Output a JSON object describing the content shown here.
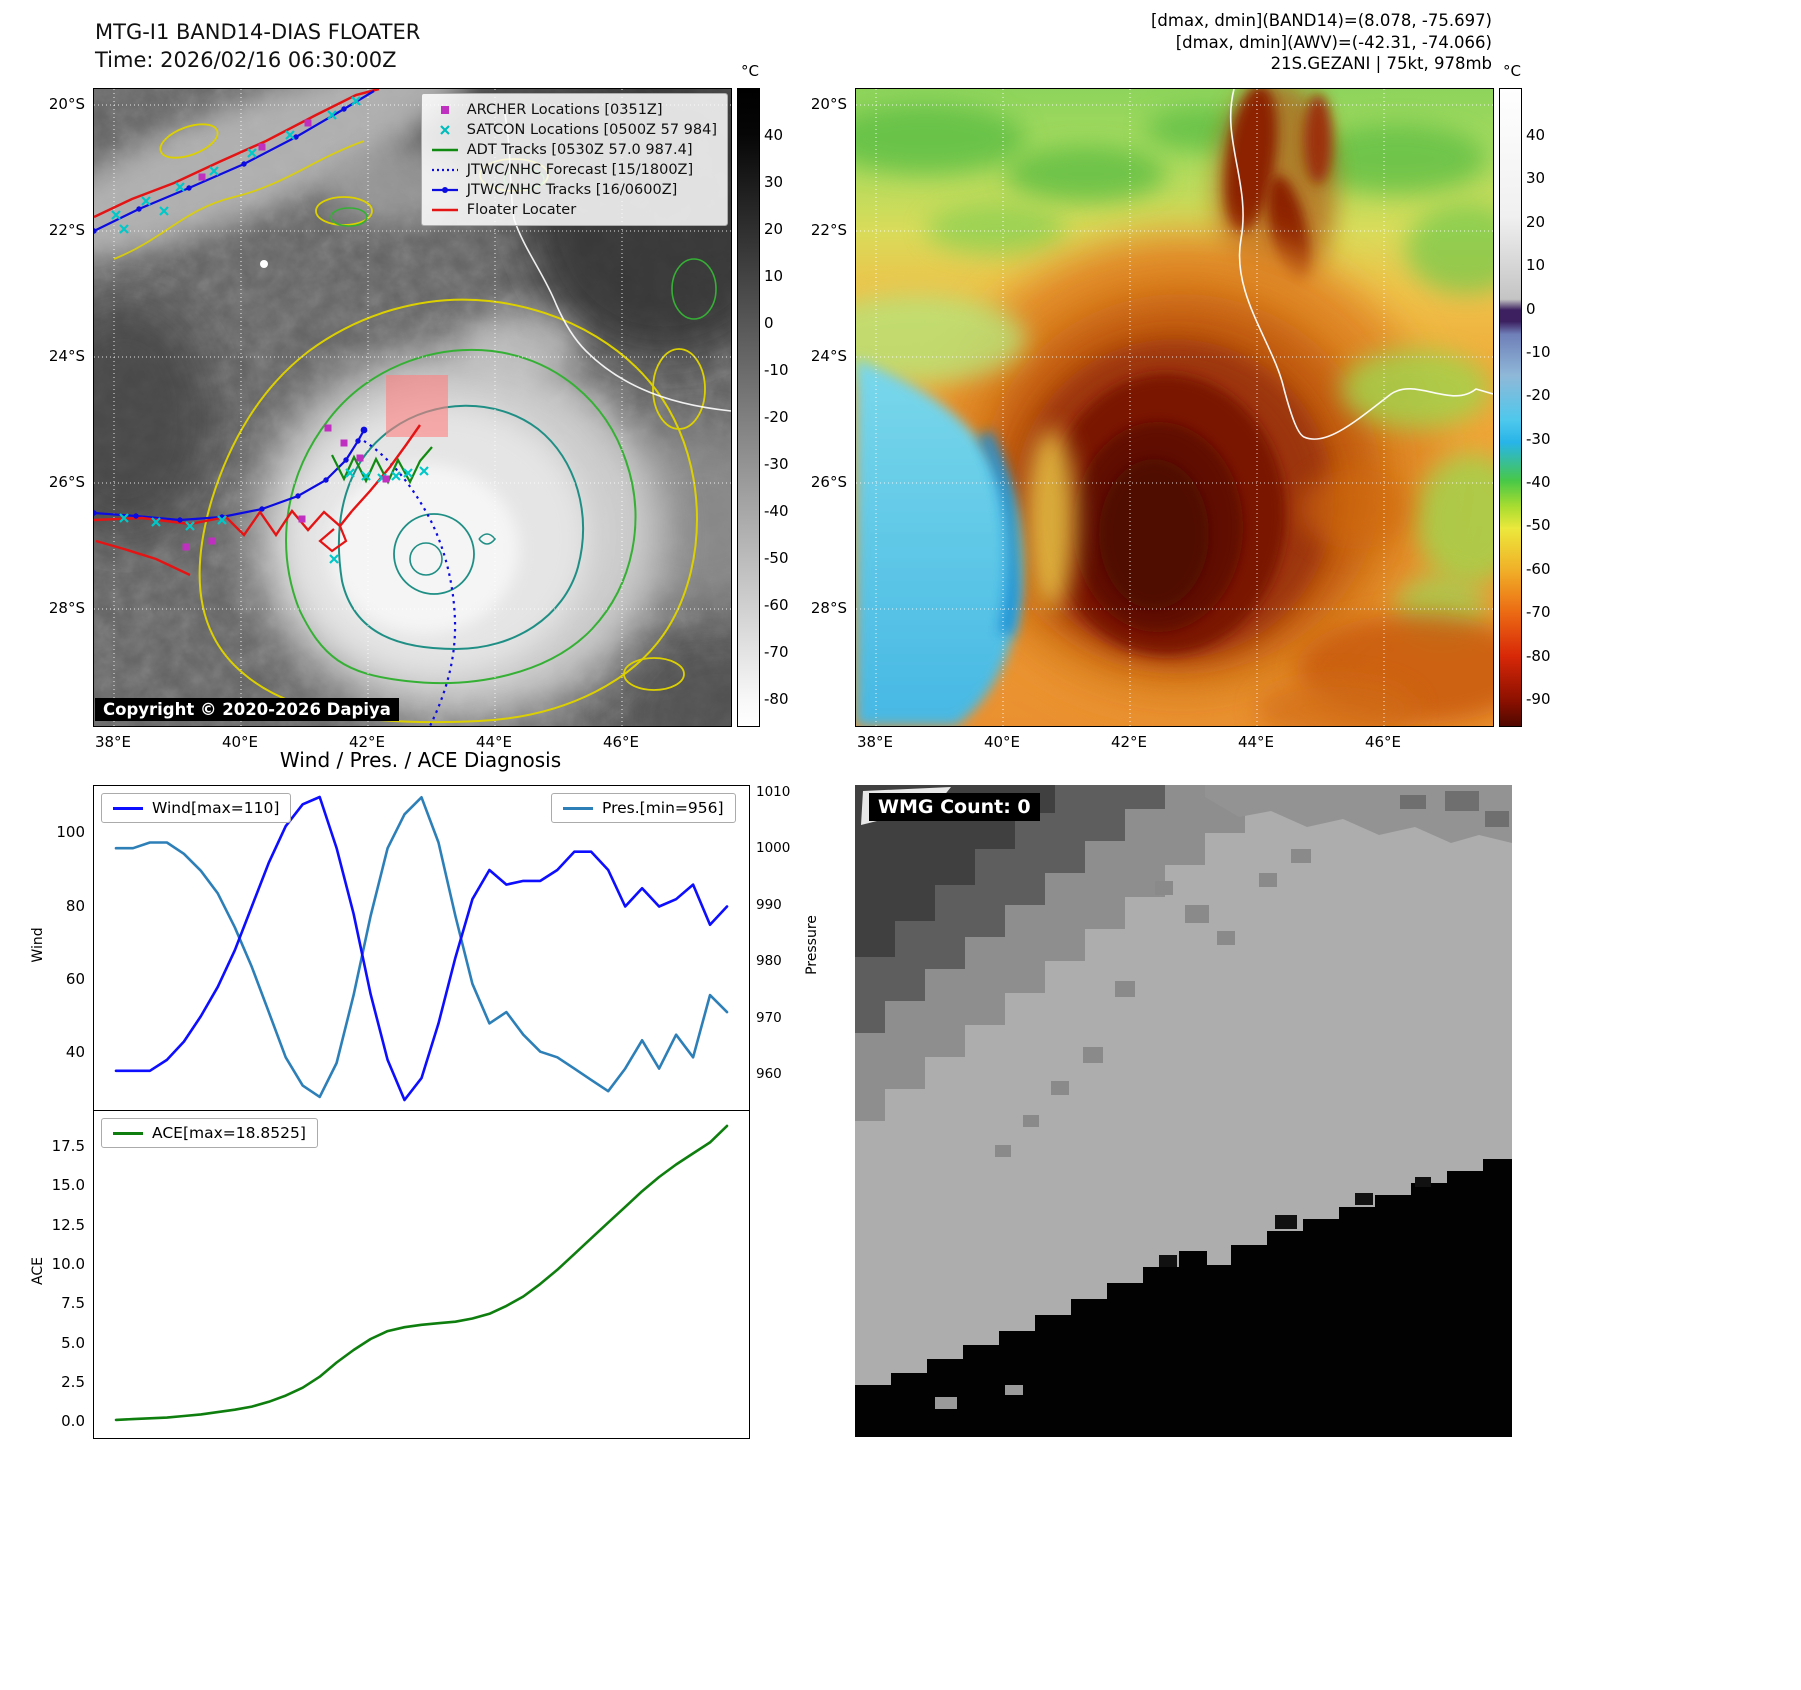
{
  "panels": {
    "band14": {
      "title": "MTG-I1 BAND14-DIAS FLOATER",
      "time": "Time: 2026/02/16 06:30:00Z",
      "copyright": "Copyright © 2020-2026 Dapiya",
      "x_ticks": [
        "38°E",
        "40°E",
        "42°E",
        "44°E",
        "46°E"
      ],
      "y_ticks": [
        "20°S",
        "22°S",
        "24°S",
        "26°S",
        "28°S"
      ],
      "colorbar": {
        "unit": "°C",
        "ticks": [
          "40",
          "30",
          "20",
          "10",
          "0",
          "-10",
          "-20",
          "-30",
          "-40",
          "-50",
          "-60",
          "-70",
          "-80"
        ]
      },
      "legend": [
        {
          "label": "ARCHER Locations [0351Z]",
          "marker": "square",
          "color": "#c030c0"
        },
        {
          "label": "SATCON Locations [0500Z 57 984]",
          "marker": "x",
          "color": "#00bcbc"
        },
        {
          "label": "ADT Tracks [0530Z 57.0 987.4]",
          "marker": "line",
          "color": "#118a11"
        },
        {
          "label": "JTWC/NHC Forecast [15/1800Z]",
          "marker": "dotted",
          "color": "#0c0ce0"
        },
        {
          "label": "JTWC/NHC Tracks [16/0600Z]",
          "marker": "line-dot",
          "color": "#0c0ce0"
        },
        {
          "label": "Floater Locater",
          "marker": "line",
          "color": "#e41414"
        }
      ]
    },
    "awv": {
      "annotations": [
        "[dmax, dmin](BAND14)=(8.078, -75.697)",
        "[dmax, dmin](AWV)=(-42.31, -74.066)",
        "21S.GEZANI | 75kt, 978mb"
      ],
      "x_ticks": [
        "38°E",
        "40°E",
        "42°E",
        "44°E",
        "46°E"
      ],
      "y_ticks": [
        "20°S",
        "22°S",
        "24°S",
        "26°S",
        "28°S"
      ],
      "colorbar": {
        "unit": "°C",
        "ticks": [
          "40",
          "30",
          "20",
          "10",
          "0",
          "-10",
          "-20",
          "-30",
          "-40",
          "-50",
          "-60",
          "-70",
          "-80",
          "-90"
        ]
      }
    },
    "diagnosis": {
      "title": "Wind / Pres. / ACE Diagnosis",
      "wind_axis_label": "Wind",
      "pressure_axis_label": "Pressure",
      "ace_axis_label": "ACE"
    },
    "wmg": {
      "count_label": "WMG Count: 0"
    }
  },
  "chart_data": [
    {
      "type": "line",
      "title": "Wind / Pres. / ACE Diagnosis",
      "series": [
        {
          "name": "Wind[max=110]",
          "color": "#0d0dff",
          "y_axis": "wind",
          "values": [
            35,
            35,
            35,
            38,
            43,
            50,
            58,
            68,
            80,
            92,
            102,
            108,
            110,
            96,
            78,
            56,
            38,
            27,
            33,
            48,
            66,
            82,
            90,
            86,
            87,
            87,
            90,
            95,
            95,
            90,
            80,
            85,
            80,
            82,
            86,
            75,
            80
          ]
        },
        {
          "name": "Pres.[min=956]",
          "color": "#2d7fb8",
          "y_axis": "pressure",
          "values": [
            1000,
            1000,
            1001,
            1001,
            999,
            996,
            992,
            986,
            979,
            971,
            963,
            958,
            956,
            962,
            974,
            988,
            1000,
            1006,
            1009,
            1001,
            988,
            976,
            969,
            971,
            967,
            964,
            963,
            961,
            959,
            957,
            961,
            966,
            961,
            967,
            963,
            974,
            971
          ]
        }
      ],
      "wind_axis": {
        "label": "Wind",
        "ticks": [
          40,
          60,
          80,
          100
        ],
        "range": [
          24,
          113
        ]
      },
      "pressure_axis": {
        "label": "Pressure",
        "ticks": [
          960,
          970,
          980,
          990,
          1000,
          1010
        ],
        "range": [
          953.5,
          1011
        ]
      },
      "legend": [
        "Wind[max=110]",
        "Pres.[min=956]"
      ]
    },
    {
      "type": "line",
      "series": [
        {
          "name": "ACE[max=18.8525]",
          "color": "#0e7e0e",
          "y_axis": "ace",
          "values": [
            0.15,
            0.2,
            0.25,
            0.3,
            0.4,
            0.5,
            0.65,
            0.8,
            1.0,
            1.3,
            1.7,
            2.2,
            2.9,
            3.8,
            4.6,
            5.3,
            5.8,
            6.05,
            6.2,
            6.3,
            6.4,
            6.6,
            6.9,
            7.4,
            8.0,
            8.8,
            9.7,
            10.7,
            11.7,
            12.7,
            13.7,
            14.7,
            15.6,
            16.4,
            17.1,
            17.8,
            18.8525
          ]
        }
      ],
      "ace_axis": {
        "label": "ACE",
        "ticks": [
          0.0,
          2.5,
          5.0,
          7.5,
          10.0,
          12.5,
          15.0,
          17.5
        ],
        "range": [
          -1.0,
          19.8
        ]
      },
      "legend": [
        "ACE[max=18.8525]"
      ]
    }
  ]
}
